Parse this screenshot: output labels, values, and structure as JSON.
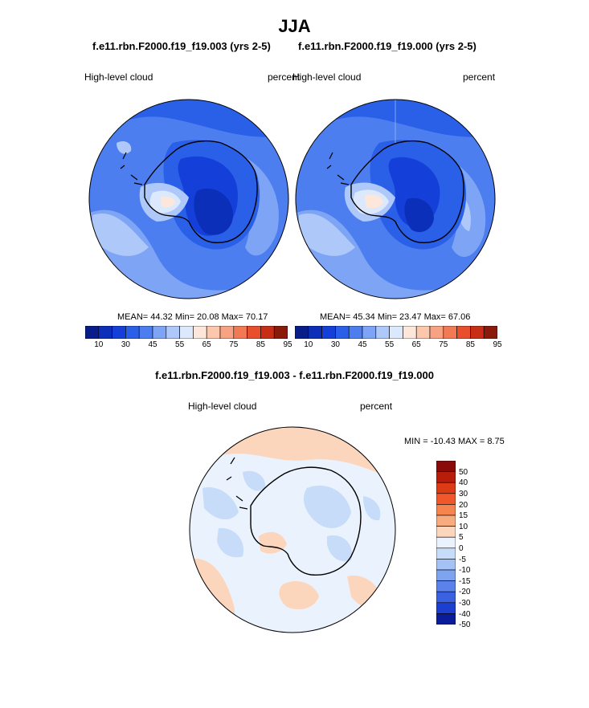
{
  "title": "JJA",
  "panels": [
    {
      "case": "f.e11.rbn.F2000.f19_f19.003 (yrs 2-5)",
      "field": "High-level cloud",
      "units": "percent",
      "stats": "MEAN=  44.32  Min=  20.08  Max=  70.17"
    },
    {
      "case": "f.e11.rbn.F2000.f19_f19.000 (yrs 2-5)",
      "field": "High-level cloud",
      "units": "percent",
      "stats": "MEAN=  45.34  Min=  23.47  Max=  67.06"
    }
  ],
  "abs_colorbar": {
    "colors": [
      "#081d8a",
      "#0b2fb8",
      "#1440d9",
      "#2a5fe8",
      "#4c7ef0",
      "#7ea4f5",
      "#aec8f9",
      "#dce9fc",
      "#fde7da",
      "#fbc7ad",
      "#f7a383",
      "#f17a55",
      "#e84f2d",
      "#c82e15",
      "#8a1a0a"
    ],
    "ticks": [
      "10",
      "30",
      "45",
      "55",
      "65",
      "75",
      "85",
      "95"
    ]
  },
  "diff": {
    "title": "f.e11.rbn.F2000.f19_f19.003 - f.e11.rbn.F2000.f19_f19.000",
    "field": "High-level cloud",
    "units": "percent",
    "stats": "MIN = -10.43 MAX =   8.75",
    "colorbar": {
      "colors": [
        "#8a0a0a",
        "#b81d0c",
        "#dd3a16",
        "#f0582c",
        "#f6844f",
        "#f9ab80",
        "#fcd5bd",
        "#eaf3fd",
        "#c6dcf8",
        "#a4c2f4",
        "#7ea3ef",
        "#5a82ea",
        "#3a62e0",
        "#1d3fd0",
        "#0a1c9a"
      ],
      "labels": [
        "50",
        "40",
        "30",
        "20",
        "15",
        "10",
        "5",
        "0",
        "-5",
        "-10",
        "-15",
        "-20",
        "-30",
        "-40",
        "-50"
      ]
    }
  }
}
